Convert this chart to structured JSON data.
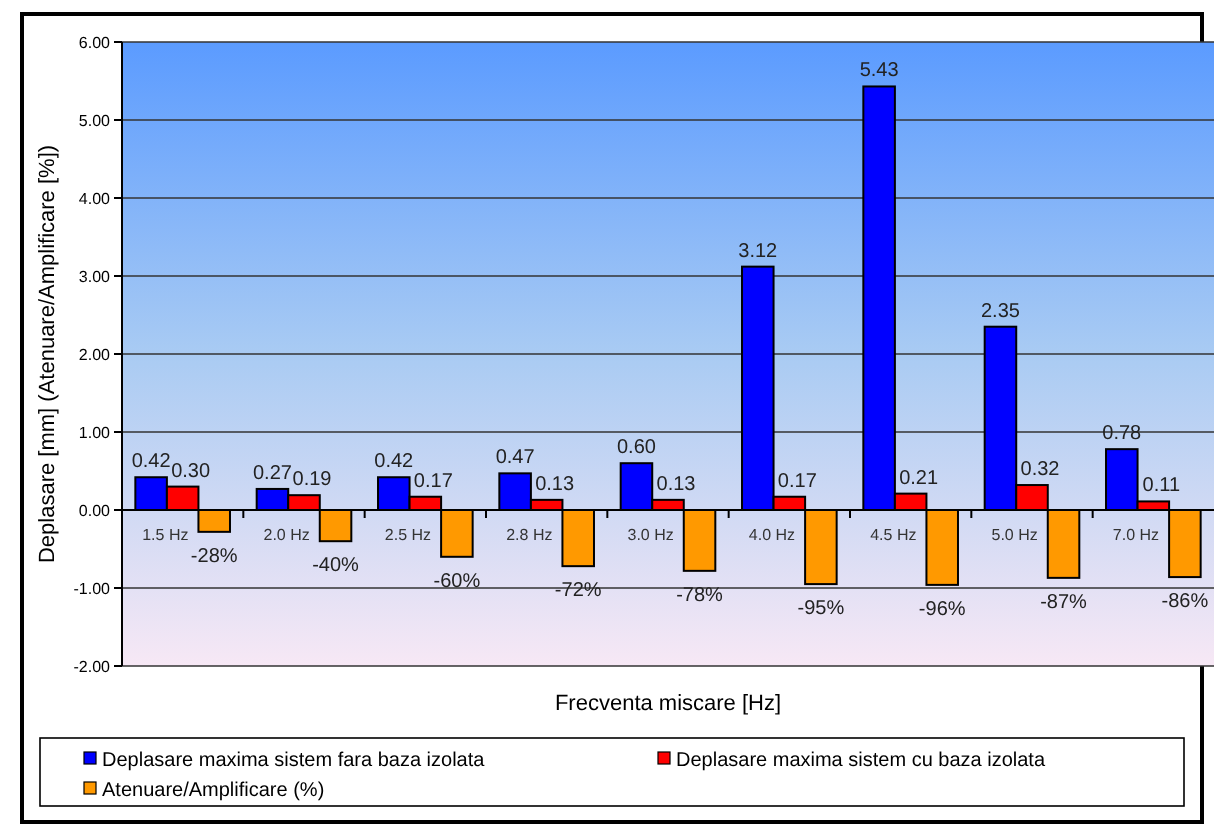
{
  "chart_data": {
    "type": "bar",
    "xlabel": "Frecventa miscare [Hz]",
    "ylabel": "Deplasare [mm] (Atenuare/Amplificare [%])",
    "categories": [
      "1.5 Hz",
      "2.0 Hz",
      "2.5 Hz",
      "2.8 Hz",
      "3.0 Hz",
      "4.0 Hz",
      "4.5 Hz",
      "5.0 Hz",
      "7.0 Hz"
    ],
    "series": [
      {
        "name": "Deplasare maxima sistem fara baza izolata",
        "color": "#0000ff",
        "values": [
          0.42,
          0.27,
          0.42,
          0.47,
          0.6,
          3.12,
          5.43,
          2.35,
          0.78
        ],
        "value_labels": [
          "0.42",
          "0.27",
          "0.42",
          "0.47",
          "0.60",
          "3.12",
          "5.43",
          "2.35",
          "0.78"
        ]
      },
      {
        "name": "Deplasare maxima sistem cu baza izolata",
        "color": "#ff0000",
        "values": [
          0.3,
          0.19,
          0.17,
          0.13,
          0.13,
          0.17,
          0.21,
          0.32,
          0.11
        ],
        "value_labels": [
          "0.30",
          "0.19",
          "0.17",
          "0.13",
          "0.13",
          "0.17",
          "0.21",
          "0.32",
          "0.11"
        ]
      },
      {
        "name": "Atenuare/Amplificare (%)",
        "color": "#ff9900",
        "values": [
          -0.28,
          -0.4,
          -0.6,
          -0.72,
          -0.78,
          -0.95,
          -0.96,
          -0.87,
          -0.86
        ],
        "value_labels": [
          "-28%",
          "-40%",
          "-60%",
          "-72%",
          "-78%",
          "-95%",
          "-96%",
          "-87%",
          "-86%"
        ]
      }
    ],
    "ylim": [
      -2,
      6
    ],
    "yticks": [
      {
        "value": -2,
        "label": "-2.00"
      },
      {
        "value": -1,
        "label": "-1.00"
      },
      {
        "value": 0,
        "label": "0.00"
      },
      {
        "value": 1,
        "label": "1.00"
      },
      {
        "value": 2,
        "label": "2.00"
      },
      {
        "value": 3,
        "label": "3.00"
      },
      {
        "value": 4,
        "label": "4.00"
      },
      {
        "value": 5,
        "label": "5.00"
      },
      {
        "value": 6,
        "label": "6.00"
      }
    ],
    "grid": "y",
    "legend": "bottom"
  }
}
